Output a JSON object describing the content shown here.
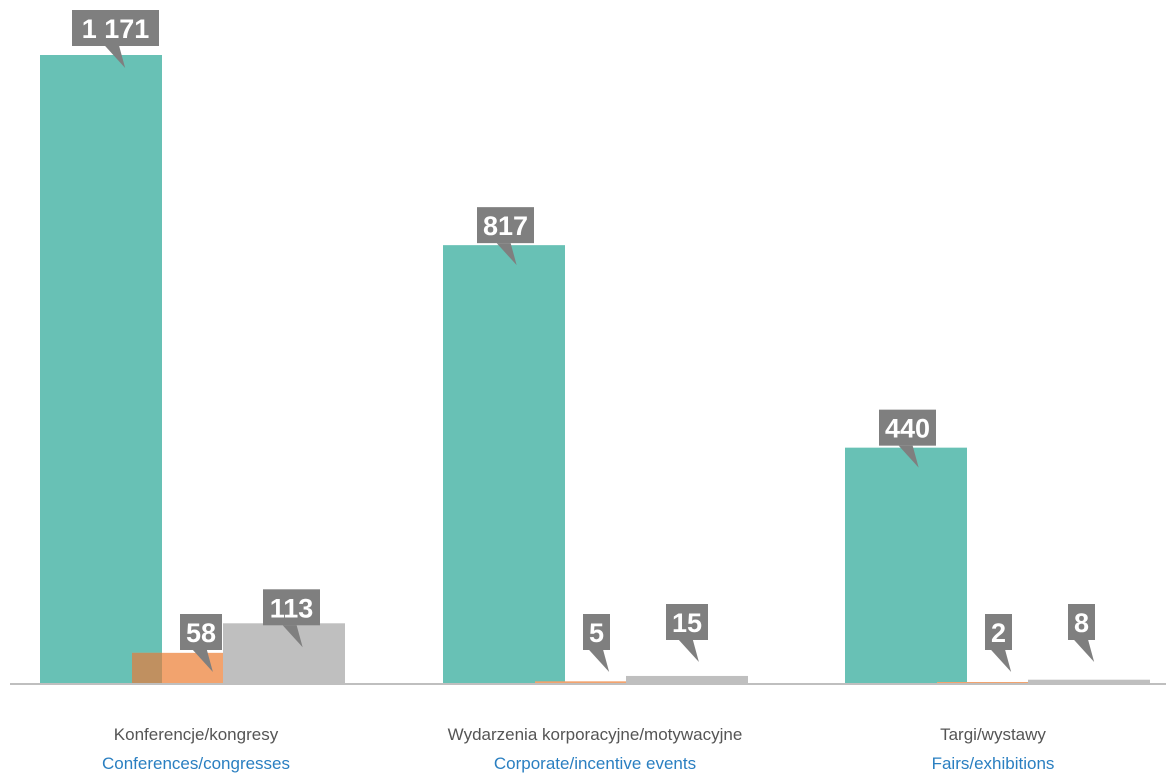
{
  "chart_data": {
    "type": "bar",
    "categories": [
      {
        "label_pl": "Konferencje/kongresy",
        "label_en": "Conferences/congresses"
      },
      {
        "label_pl": "Wydarzenia korporacyjne/motywacyjne",
        "label_en": "Corporate/incentive events"
      },
      {
        "label_pl": "Targi/wystawy",
        "label_en": "Fairs/exhibitions"
      }
    ],
    "series": [
      {
        "color": "#68c1b5",
        "values": [
          1171,
          817,
          440
        ],
        "labels": [
          "1 171",
          "817",
          "440"
        ]
      },
      {
        "color": "#f2a36e",
        "values": [
          58,
          5,
          2
        ],
        "labels": [
          "58",
          "5",
          "2"
        ]
      },
      {
        "color": "#bfbfbf",
        "values": [
          113,
          15,
          8
        ],
        "labels": [
          "113",
          "15",
          "8"
        ]
      }
    ],
    "ylim": [
      0,
      1171
    ],
    "grid": false,
    "legend": "none",
    "colors": {
      "label_box": "#7f7f7f",
      "axis": "#bfbfbf",
      "overlap": "#c09060"
    }
  }
}
